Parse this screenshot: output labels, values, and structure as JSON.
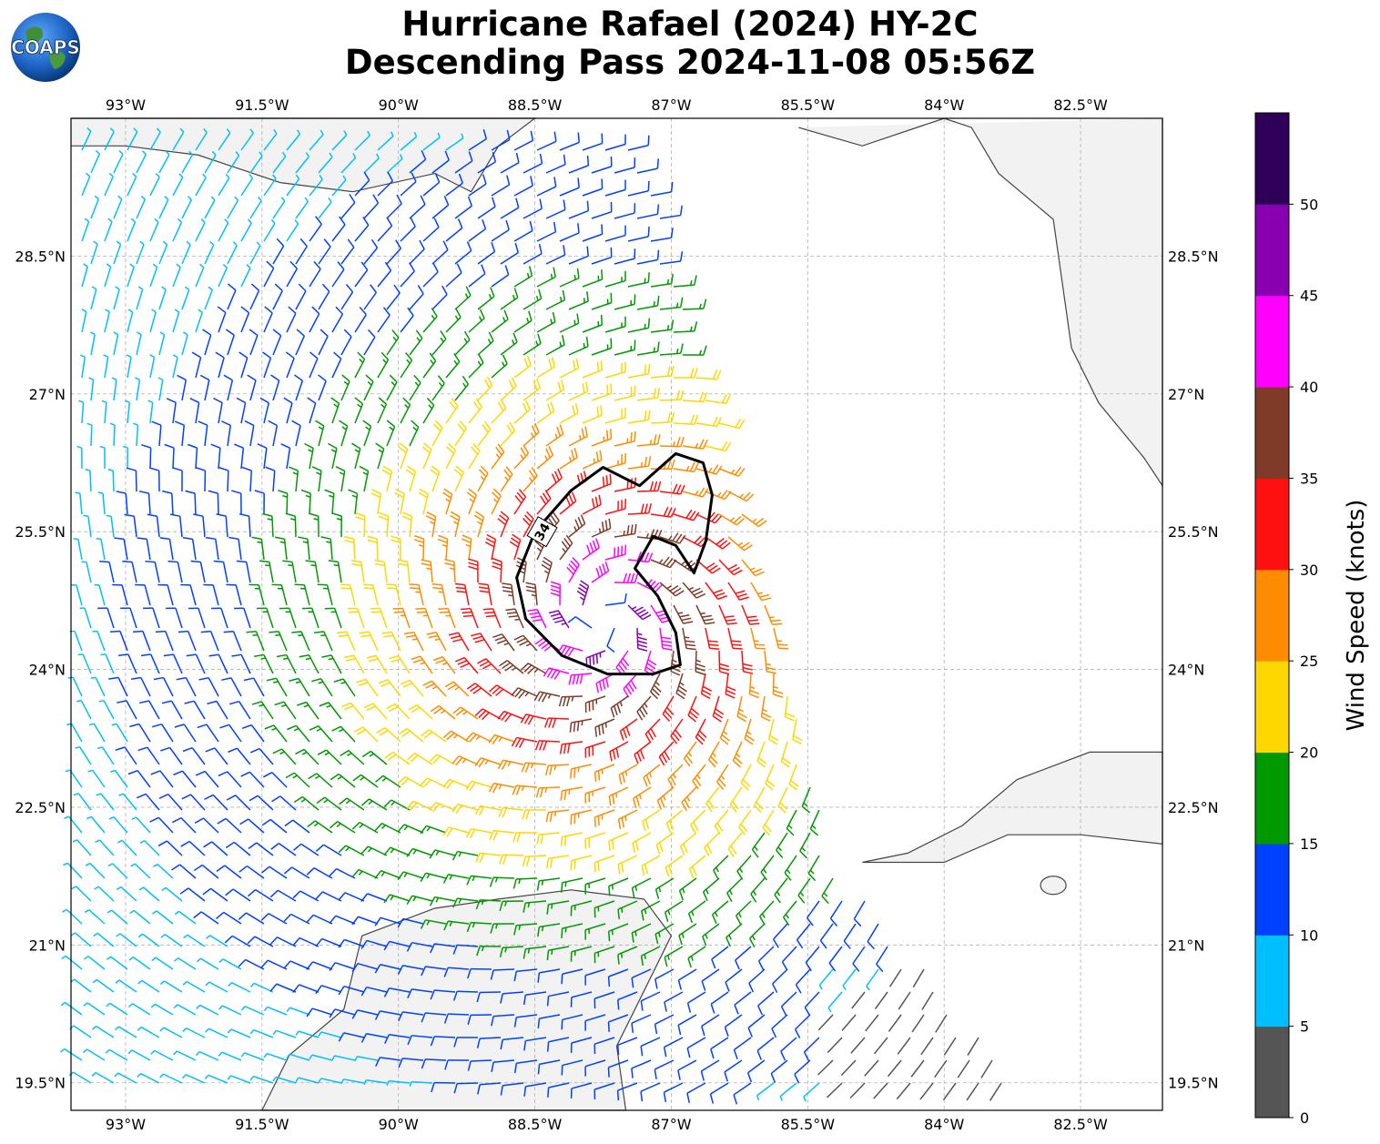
{
  "title": {
    "line1": "Hurricane Rafael (2024) HY-2C",
    "line2": "Descending Pass 2024-11-08 05:56Z"
  },
  "logo": {
    "text": "COAPS"
  },
  "map": {
    "lon_range": [
      -93.6,
      -81.6
    ],
    "lat_range": [
      19.2,
      30.0
    ],
    "lon_ticks": [
      {
        "value": -93.0,
        "label": "93°W"
      },
      {
        "value": -91.5,
        "label": "91.5°W"
      },
      {
        "value": -90.0,
        "label": "90°W"
      },
      {
        "value": -88.5,
        "label": "88.5°W"
      },
      {
        "value": -87.0,
        "label": "87°W"
      },
      {
        "value": -85.5,
        "label": "85.5°W"
      },
      {
        "value": -84.0,
        "label": "84°W"
      },
      {
        "value": -82.5,
        "label": "82.5°W"
      }
    ],
    "lat_ticks": [
      {
        "value": 28.5,
        "label": "28.5°N"
      },
      {
        "value": 27.0,
        "label": "27°N"
      },
      {
        "value": 25.5,
        "label": "25.5°N"
      },
      {
        "value": 24.0,
        "label": "24°N"
      },
      {
        "value": 22.5,
        "label": "22.5°N"
      },
      {
        "value": 21.0,
        "label": "21°N"
      },
      {
        "value": 19.5,
        "label": "19.5°N"
      }
    ],
    "contour_label": "34",
    "storm_center": {
      "lon": -87.75,
      "lat": 24.55
    }
  },
  "colorbar": {
    "label": "Wind Speed (knots)",
    "bins": [
      {
        "min": 0,
        "max": 5,
        "color": "#555555"
      },
      {
        "min": 5,
        "max": 10,
        "color": "#00bfff"
      },
      {
        "min": 10,
        "max": 15,
        "color": "#0040ff"
      },
      {
        "min": 15,
        "max": 20,
        "color": "#009900"
      },
      {
        "min": 20,
        "max": 25,
        "color": "#ffd700"
      },
      {
        "min": 25,
        "max": 30,
        "color": "#ff8c00"
      },
      {
        "min": 30,
        "max": 35,
        "color": "#ff1010"
      },
      {
        "min": 35,
        "max": 40,
        "color": "#7f3b28"
      },
      {
        "min": 40,
        "max": 45,
        "color": "#ff00ff"
      },
      {
        "min": 45,
        "max": 50,
        "color": "#8800b0"
      },
      {
        "min": 50,
        "max": 55,
        "color": "#2e0059"
      }
    ],
    "tick_labels": [
      "0",
      "5",
      "10",
      "15",
      "20",
      "25",
      "30",
      "35",
      "40",
      "45",
      "50"
    ]
  },
  "colors": {
    "coastline": "#444444",
    "grid": "#b0b0b0",
    "contour": "#000000",
    "land_shade": "#f2f2f2"
  }
}
